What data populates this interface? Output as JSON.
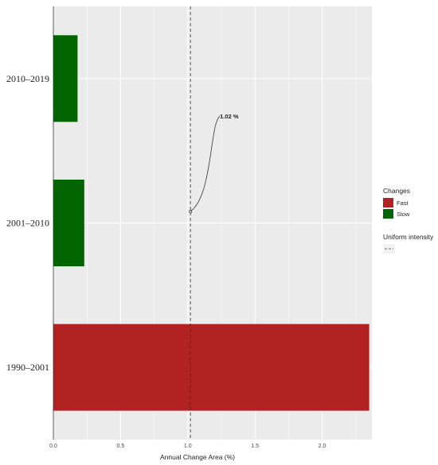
{
  "chart_data": {
    "type": "bar",
    "orientation": "horizontal",
    "categories": [
      "1990–2001",
      "2001–2010",
      "2010–2019"
    ],
    "values": [
      2.35,
      0.23,
      0.18
    ],
    "series_by_category": [
      "Fast",
      "Slow",
      "Slow"
    ],
    "xlabel": "Annual Change Area (%)",
    "xlim": [
      0,
      2.37
    ],
    "xticks": [
      "0.0",
      "0.5",
      "1.0",
      "1.5",
      "2.0"
    ],
    "grid": true,
    "legend": {
      "position": "right",
      "title": "Changes",
      "entries": [
        {
          "label": "Fast",
          "color": "#b22222"
        },
        {
          "label": "Slow",
          "color": "#006400"
        }
      ],
      "line_title": "Uniform intensity"
    },
    "reference_line": {
      "x": 1.02,
      "style": "dashed"
    },
    "annotation": {
      "text": "1.02 %",
      "x": 1.02
    }
  },
  "colors": {
    "Fast": "#b22222",
    "Slow": "#006400",
    "panel": "#ebebeb",
    "grid": "#ffffff"
  }
}
